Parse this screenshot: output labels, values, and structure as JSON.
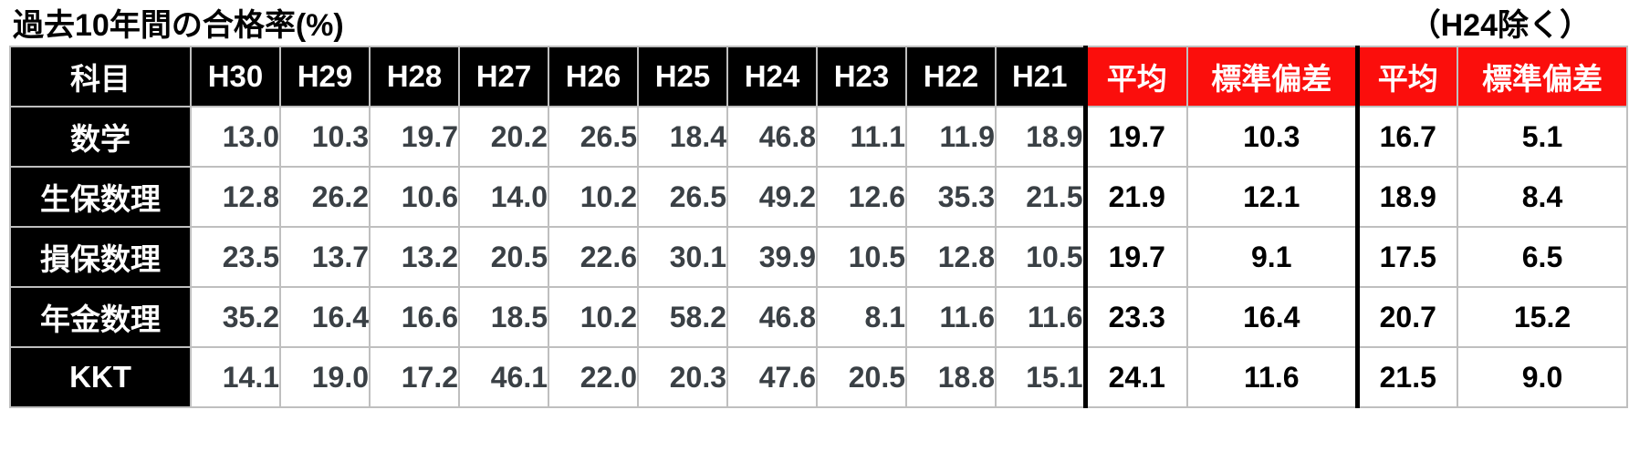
{
  "page": {
    "title_left": "過去10年間の合格率(%)",
    "title_right": "（H24除く）"
  },
  "colors": {
    "header_bg": "#000000",
    "header_text": "#ffffff",
    "stat_header_bg": "#fb0e0c",
    "grid_line": "#bfbfbf",
    "divider": "#000000",
    "year_value_text": "#3a4045",
    "stat_value_text": "#000000"
  },
  "chart_data": {
    "type": "table",
    "title": "過去10年間の合格率(%)",
    "note": "（H24除く）",
    "subject_header": "科目",
    "year_columns": [
      "H30",
      "H29",
      "H28",
      "H27",
      "H26",
      "H25",
      "H24",
      "H23",
      "H22",
      "H21"
    ],
    "stat_columns": [
      "平均",
      "標準偏差",
      "平均",
      "標準偏差"
    ],
    "rows": [
      {
        "subject": "数学",
        "yearly": [
          13.0,
          10.3,
          19.7,
          20.2,
          26.5,
          18.4,
          46.8,
          11.1,
          11.9,
          18.9
        ],
        "stats": [
          19.7,
          10.3,
          16.7,
          5.1
        ]
      },
      {
        "subject": "生保数理",
        "yearly": [
          12.8,
          26.2,
          10.6,
          14.0,
          10.2,
          26.5,
          49.2,
          12.6,
          35.3,
          21.5
        ],
        "stats": [
          21.9,
          12.1,
          18.9,
          8.4
        ]
      },
      {
        "subject": "損保数理",
        "yearly": [
          23.5,
          13.7,
          13.2,
          20.5,
          22.6,
          30.1,
          39.9,
          10.5,
          12.8,
          10.5
        ],
        "stats": [
          19.7,
          9.1,
          17.5,
          6.5
        ]
      },
      {
        "subject": "年金数理",
        "yearly": [
          35.2,
          16.4,
          16.6,
          18.5,
          10.2,
          58.2,
          46.8,
          8.1,
          11.6,
          11.6
        ],
        "stats": [
          23.3,
          16.4,
          20.7,
          15.2
        ]
      },
      {
        "subject": "KKT",
        "yearly": [
          14.1,
          19.0,
          17.2,
          46.1,
          22.0,
          20.3,
          47.6,
          20.5,
          18.8,
          15.1
        ],
        "stats": [
          24.1,
          11.6,
          21.5,
          9.0
        ]
      }
    ],
    "layout": {
      "grid": "light-gray cell borders, thick black vertical dividers before each 平均 group",
      "header_style": "black background for subject/year columns, red background for stat columns"
    }
  }
}
